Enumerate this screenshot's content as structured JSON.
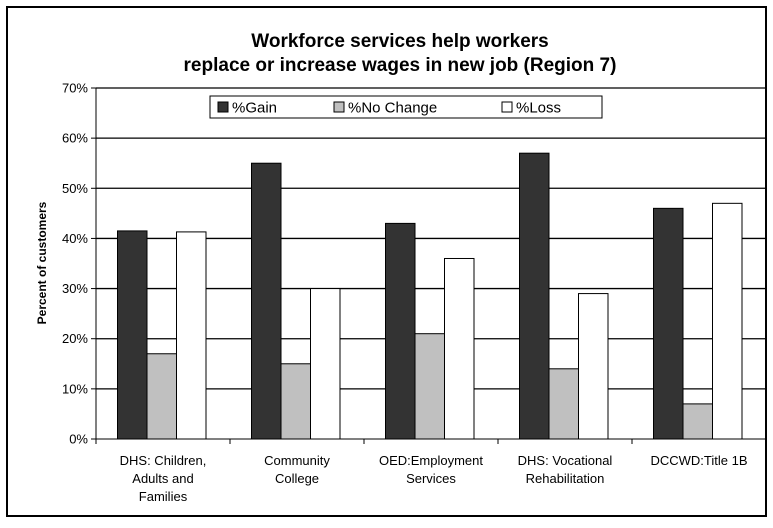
{
  "chart_data": {
    "type": "bar",
    "title": [
      "Workforce services help workers",
      "replace or increase wages in new job (Region 7)"
    ],
    "xlabel": "",
    "ylabel": "Percent of customers",
    "ylim": [
      0,
      70
    ],
    "yticks": [
      0,
      10,
      20,
      30,
      40,
      50,
      60,
      70
    ],
    "ytick_labels": [
      "0%",
      "10%",
      "20%",
      "30%",
      "40%",
      "50%",
      "60%",
      "70%"
    ],
    "grid": true,
    "legend_position": "top",
    "categories": [
      [
        "DHS: Children,",
        "Adults and",
        "Families"
      ],
      [
        "Community",
        "College"
      ],
      [
        "OED:Employment",
        "Services"
      ],
      [
        "DHS: Vocational",
        "Rehabilitation"
      ],
      [
        "DCCWD:Title 1B"
      ]
    ],
    "series": [
      {
        "name": "%Gain",
        "color": "#333333",
        "values": [
          41.5,
          55,
          43,
          57,
          46
        ]
      },
      {
        "name": "%No Change",
        "color": "#c0c0c0",
        "values": [
          17,
          15,
          21,
          14,
          7
        ]
      },
      {
        "name": "%Loss",
        "color": "#ffffff",
        "values": [
          41.3,
          30,
          36,
          29,
          47
        ]
      }
    ]
  }
}
